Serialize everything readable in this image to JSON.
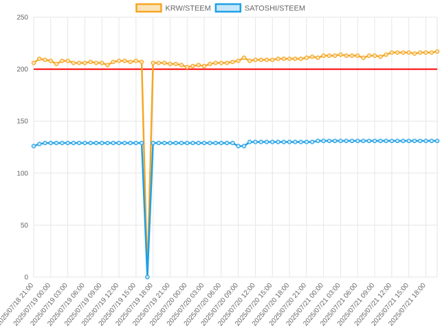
{
  "chart_data": {
    "type": "line",
    "title": "",
    "xlabel": "",
    "ylabel": "",
    "ylim": [
      0,
      250
    ],
    "y_ticks": [
      "0",
      "50",
      "100",
      "150",
      "200",
      "250"
    ],
    "grid": true,
    "legend_position": "top-center",
    "reference_line": {
      "y": 200,
      "color": "#ff0000"
    },
    "x_tick_labels": [
      "2025/07/18 21:00",
      "2025/07/19 00:00",
      "2025/07/19 03:00",
      "2025/07/19 06:00",
      "2025/07/19 09:00",
      "2025/07/19 12:00",
      "2025/07/19 15:00",
      "2025/07/19 18:00",
      "2025/07/19 21:00",
      "2025/07/20 00:00",
      "2025/07/20 03:00",
      "2025/07/20 06:00",
      "2025/07/20 09:00",
      "2025/07/20 12:00",
      "2025/07/20 15:00",
      "2025/07/20 18:00",
      "2025/07/20 21:00",
      "2025/07/21 00:00",
      "2025/07/21 03:00",
      "2025/07/21 06:00",
      "2025/07/21 09:00",
      "2025/07/21 12:00",
      "2025/07/21 15:00",
      "2025/07/21 18:00"
    ],
    "x_step_hours": 1,
    "series": [
      {
        "name": "KRW/STEEM",
        "color": "#f5a623",
        "fill": "#fbe3b8",
        "values": [
          206,
          210,
          209,
          208,
          205,
          208,
          208,
          206,
          206,
          206,
          207,
          206,
          206,
          204,
          207,
          208,
          208,
          207,
          208,
          207,
          0,
          206,
          206,
          206,
          205,
          205,
          204,
          202,
          203,
          204,
          203,
          205,
          206,
          206,
          206,
          207,
          208,
          211,
          208,
          209,
          209,
          209,
          209,
          210,
          210,
          210,
          210,
          210,
          211,
          212,
          211,
          213,
          213,
          213,
          214,
          213,
          213,
          213,
          211,
          213,
          213,
          212,
          214,
          216,
          216,
          216,
          216,
          215,
          216,
          216,
          216,
          217
        ]
      },
      {
        "name": "SATOSHI/STEEM",
        "color": "#1fa0e5",
        "fill": "#c6e6f9",
        "values": [
          126,
          128,
          129,
          129,
          129,
          129,
          129,
          129,
          129,
          129,
          129,
          129,
          129,
          129,
          129,
          129,
          129,
          129,
          129,
          129,
          0,
          129,
          129,
          129,
          129,
          129,
          129,
          129,
          129,
          129,
          129,
          129,
          129,
          129,
          129,
          129,
          126,
          126,
          130,
          130,
          130,
          130,
          130,
          130,
          130,
          130,
          130,
          130,
          130,
          130,
          131,
          131,
          131,
          131,
          131,
          131,
          131,
          131,
          131,
          131,
          131,
          131,
          131,
          131,
          131,
          131,
          131,
          131,
          131,
          131,
          131,
          131
        ]
      }
    ]
  }
}
